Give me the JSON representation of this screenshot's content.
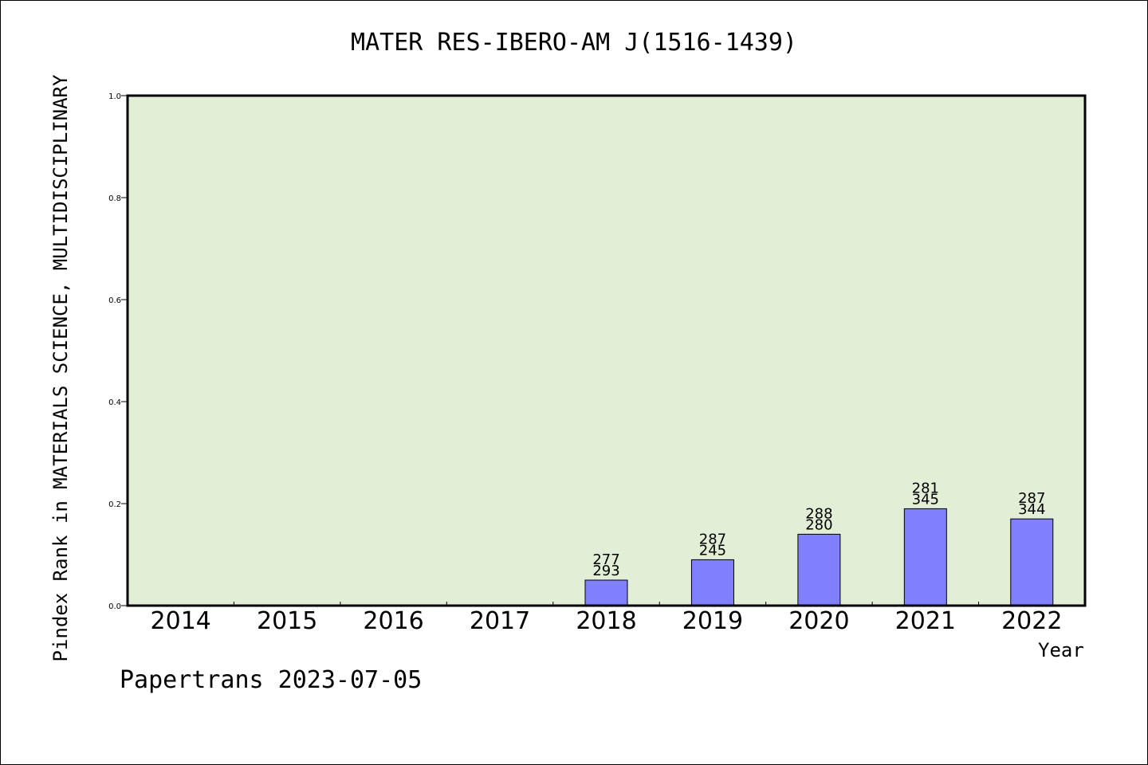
{
  "chart_data": {
    "type": "bar",
    "title": "MATER RES-IBERO-AM J(1516-1439)",
    "xlabel": "Year",
    "ylabel": "Pindex Rank in MATERIALS SCIENCE, MULTIDISCIPLINARY",
    "ylim": [
      0,
      1.0
    ],
    "yticks": [
      "0.0",
      "0.2",
      "0.4",
      "0.6",
      "0.8",
      "1.0"
    ],
    "categories": [
      "2014",
      "2015",
      "2016",
      "2017",
      "2018",
      "2019",
      "2020",
      "2021",
      "2022"
    ],
    "values": [
      null,
      null,
      null,
      null,
      0.05,
      0.09,
      0.14,
      0.19,
      0.17
    ],
    "labels_top": [
      "",
      "",
      "",
      "",
      "277",
      "287",
      "288",
      "281",
      "287"
    ],
    "labels_bottom": [
      "",
      "",
      "",
      "",
      "293",
      "245",
      "280",
      "345",
      "344"
    ],
    "grid": false,
    "colors": {
      "plot_background": "#e2efd6",
      "bar_fill": "#8080ff",
      "bar_stroke": "#000000"
    }
  },
  "footer": "Papertrans 2023-07-05"
}
